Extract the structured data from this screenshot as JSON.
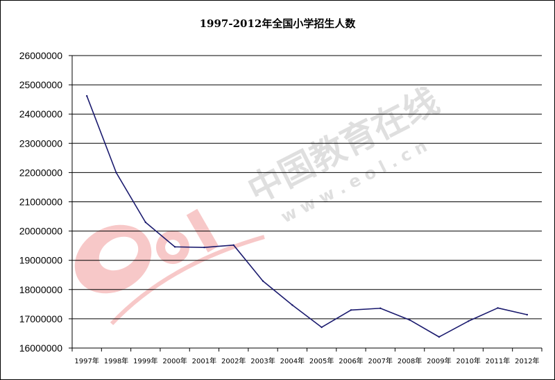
{
  "chart_data": {
    "type": "line",
    "title": "1997-2012年全国小学招生人数",
    "xlabel": "",
    "ylabel": "",
    "categories": [
      "1997年",
      "1998年",
      "1999年",
      "2000年",
      "2001年",
      "2002年",
      "2003年",
      "2004年",
      "2005年",
      "2006年",
      "2007年",
      "2008年",
      "2009年",
      "2010年",
      "2011年",
      "2012年"
    ],
    "series": [
      {
        "values": [
          24620000,
          22000000,
          20300000,
          19460000,
          19440000,
          19520000,
          18290000,
          17470000,
          16710000,
          17300000,
          17360000,
          16960000,
          16380000,
          16920000,
          17370000,
          17140000
        ]
      }
    ],
    "ylim": [
      16000000,
      26000000
    ],
    "yticks": [
      "16000000",
      "17000000",
      "18000000",
      "19000000",
      "20000000",
      "21000000",
      "22000000",
      "23000000",
      "24000000",
      "25000000",
      "26000000"
    ],
    "grid": "horizontal",
    "legend": "none",
    "line_color": "#1a1a6e"
  },
  "watermark": {
    "brand_cn": "中国教育在线",
    "url": "w w w . e o l . c n",
    "logo_text": "eol",
    "logo_color": "#e84c4c"
  }
}
